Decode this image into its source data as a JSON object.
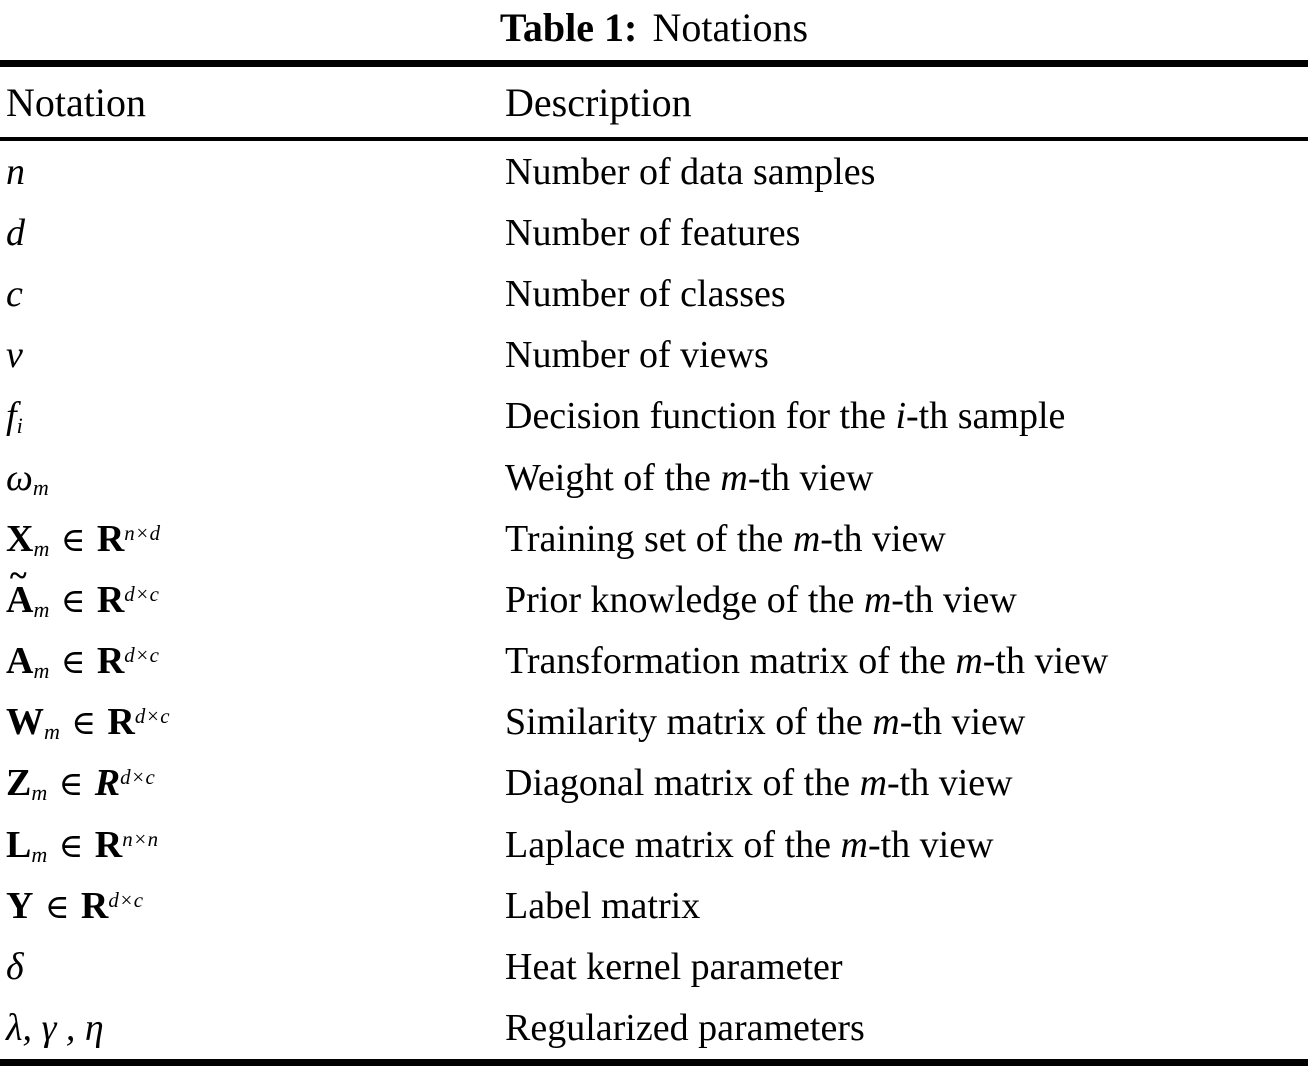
{
  "title": {
    "label": "Table 1:",
    "text": "Notations"
  },
  "header": {
    "notation": "Notation",
    "description": "Description"
  },
  "rows": [
    {
      "n": {
        "tilde": "",
        "base": "n",
        "sub": "",
        "in": "",
        "set": "",
        "sup": ""
      },
      "d": {
        "pre": "Number of data samples",
        "var": "",
        "post": ""
      }
    },
    {
      "n": {
        "tilde": "",
        "base": "d",
        "sub": "",
        "in": "",
        "set": "",
        "sup": ""
      },
      "d": {
        "pre": "Number of features",
        "var": "",
        "post": ""
      }
    },
    {
      "n": {
        "tilde": "",
        "base": "c",
        "sub": "",
        "in": "",
        "set": "",
        "sup": ""
      },
      "d": {
        "pre": "Number of classes",
        "var": "",
        "post": ""
      }
    },
    {
      "n": {
        "tilde": "",
        "base": "v",
        "sub": "",
        "in": "",
        "set": "",
        "sup": ""
      },
      "d": {
        "pre": "Number of views",
        "var": "",
        "post": ""
      }
    },
    {
      "n": {
        "tilde": "",
        "base": "f",
        "sub": "i",
        "in": "",
        "set": "",
        "sup": ""
      },
      "d": {
        "pre": "Decision function for the ",
        "var": "i",
        "post": "-th sample"
      }
    },
    {
      "n": {
        "tilde": "",
        "base": "ω",
        "sub": "m",
        "in": "",
        "set": "",
        "sup": ""
      },
      "d": {
        "pre": "Weight of the ",
        "var": "m",
        "post": "-th view"
      }
    },
    {
      "n": {
        "tilde": "",
        "base": "X",
        "sub": "m",
        "in": "∈",
        "set": "R",
        "sup": "n×d"
      },
      "d": {
        "pre": "Training set of the ",
        "var": "m",
        "post": "-th view"
      }
    },
    {
      "n": {
        "tilde": "~",
        "base": "A",
        "sub": "m",
        "in": "∈",
        "set": "R",
        "sup": "d×c"
      },
      "d": {
        "pre": "Prior knowledge of the ",
        "var": "m",
        "post": "-th view"
      }
    },
    {
      "n": {
        "tilde": "",
        "base": "A",
        "sub": "m",
        "in": "∈",
        "set": "R",
        "sup": "d×c"
      },
      "d": {
        "pre": "Transformation matrix of the ",
        "var": "m",
        "post": "-th view"
      }
    },
    {
      "n": {
        "tilde": "",
        "base": "W",
        "sub": "m",
        "in": "∈",
        "set": "R",
        "sup": "d×c"
      },
      "d": {
        "pre": "Similarity matrix of the ",
        "var": "m",
        "post": "-th view"
      }
    },
    {
      "n": {
        "tilde": "",
        "base": "Z",
        "sub": "m",
        "in": "∈",
        "set": "R",
        "sup": "d×c"
      },
      "d": {
        "pre": "Diagonal matrix of the ",
        "var": "m",
        "post": "-th view"
      }
    },
    {
      "n": {
        "tilde": "",
        "base": "L",
        "sub": "m",
        "in": "∈",
        "set": "R",
        "sup": "n×n"
      },
      "d": {
        "pre": "Laplace matrix of the ",
        "var": "m",
        "post": "-th view"
      }
    },
    {
      "n": {
        "tilde": "",
        "base": "Y",
        "sub": "",
        "in": "∈",
        "set": "R",
        "sup": "d×c"
      },
      "d": {
        "pre": "Label matrix",
        "var": "",
        "post": ""
      }
    },
    {
      "n": {
        "tilde": "",
        "base": "δ",
        "sub": "",
        "in": "",
        "set": "",
        "sup": ""
      },
      "d": {
        "pre": "Heat kernel parameter",
        "var": "",
        "post": ""
      }
    },
    {
      "n": {
        "tilde": "",
        "base": "λ, γ , η",
        "sub": "",
        "in": "",
        "set": "",
        "sup": ""
      },
      "d": {
        "pre": "Regularized parameters",
        "var": "",
        "post": ""
      }
    }
  ]
}
